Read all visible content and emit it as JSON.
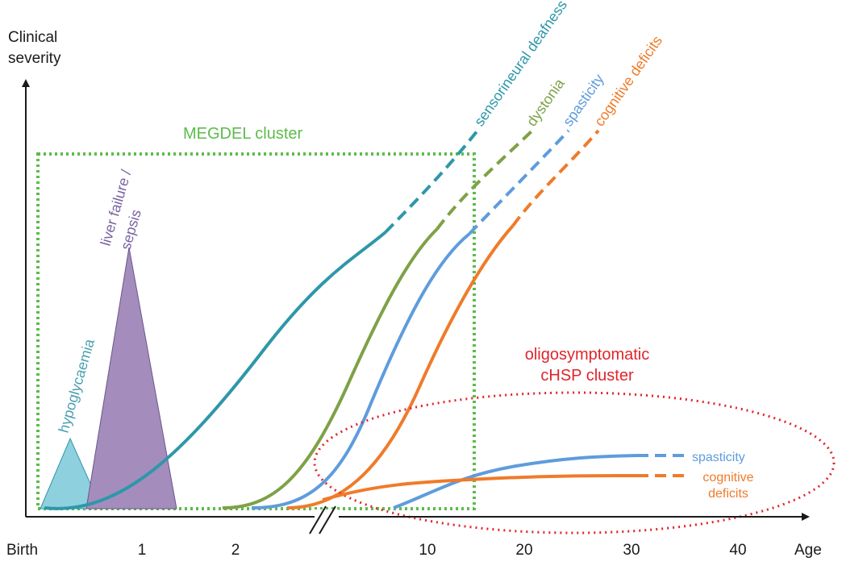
{
  "axes": {
    "y_label_line1": "Clinical",
    "y_label_line2": "severity",
    "x_label": "Age",
    "x_ticks": [
      "Birth",
      "1",
      "2",
      "10",
      "20",
      "30",
      "40"
    ]
  },
  "clusters": {
    "megdel": {
      "label": "MEGDEL cluster",
      "color": "#5dbb4c"
    },
    "chsp": {
      "label_line1": "oligosymptomatic",
      "label_line2": "cHSP cluster",
      "color": "#e0252b"
    }
  },
  "symptoms": {
    "hypoglycaemia": {
      "label": "hypoglycaemia",
      "color": "#8fd0df"
    },
    "liver": {
      "label_line1": "liver failure /",
      "label_line2": "sepsis",
      "color": "#a48dbd"
    }
  },
  "curves": {
    "sensorineural": {
      "label": "sensorineural deafness",
      "color": "#2e97a9"
    },
    "dystonia": {
      "label": "dystonia",
      "color": "#7ea146"
    },
    "spasticity": {
      "label": "spasticity",
      "color": "#5e9cdc"
    },
    "cognitive": {
      "label": "cognitive deficits",
      "color": "#ef7b2a"
    }
  },
  "chsp_curves": {
    "spasticity": {
      "label": "spasticity",
      "color": "#5e9cdc"
    },
    "cognitive": {
      "label_line1": "cognitive",
      "label_line2": "deficits",
      "color": "#ef7b2a"
    }
  },
  "colors": {
    "axis": "#1a1a1a",
    "text": "#1a1a1a"
  }
}
